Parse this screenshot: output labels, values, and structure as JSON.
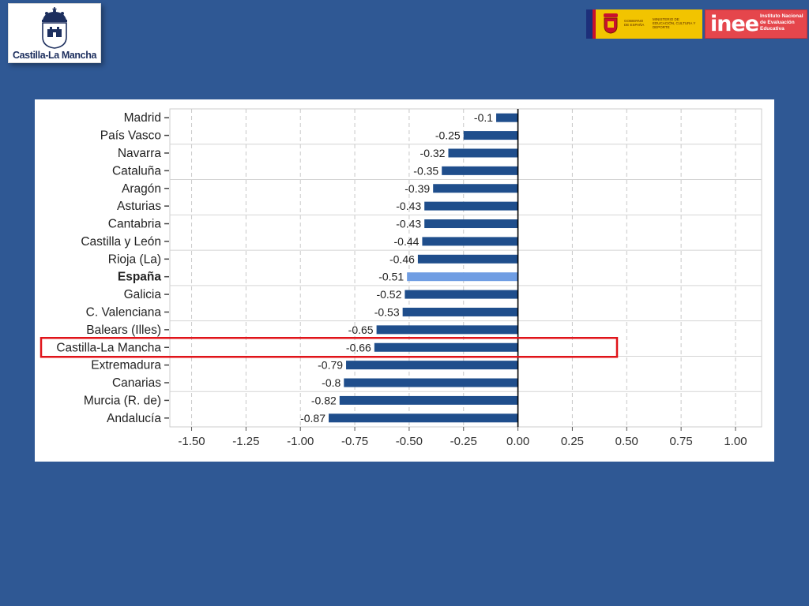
{
  "header": {
    "left_logo": {
      "name": "Castilla-La Mancha",
      "icon": "castle-crown-crest-icon"
    },
    "right_logos": {
      "government": {
        "icon": "spain-coat-of-arms-icon",
        "line1": "GOBIERNO DE ESPAÑA",
        "line2": "MINISTERIO DE EDUCACIÓN, CULTURA Y DEPORTE"
      },
      "inee": {
        "wordmark": "inee",
        "subtitle": "Instituto Nacional de Evaluación Educativa"
      }
    }
  },
  "colors": {
    "background": "#2f5894",
    "bar": "#1f4e8c",
    "bar_highlight": "#6f9de3",
    "highlight_box": "#e0141a"
  },
  "chart_data": {
    "type": "bar",
    "orientation": "horizontal",
    "categories": [
      "Madrid",
      "País Vasco",
      "Navarra",
      "Cataluña",
      "Aragón",
      "Asturias",
      "Cantabria",
      "Castilla y León",
      "Rioja (La)",
      "España",
      "Galicia",
      "C. Valenciana",
      "Balears (Illes)",
      "Castilla-La Mancha",
      "Extremadura",
      "Canarias",
      "Murcia (R. de)",
      "Andalucía"
    ],
    "values": [
      -0.1,
      -0.25,
      -0.32,
      -0.35,
      -0.39,
      -0.43,
      -0.43,
      -0.44,
      -0.46,
      -0.51,
      -0.52,
      -0.53,
      -0.65,
      -0.66,
      -0.79,
      -0.8,
      -0.82,
      -0.87
    ],
    "value_labels": [
      "-0.1",
      "-0.25",
      "-0.32",
      "-0.35",
      "-0.39",
      "-0.43",
      "-0.43",
      "-0.44",
      "-0.46",
      "-0.51",
      "-0.52",
      "-0.53",
      "-0.65",
      "-0.66",
      "-0.79",
      "-0.8",
      "-0.82",
      "-0.87"
    ],
    "highlight_category": "España",
    "boxed_category": "Castilla-La Mancha",
    "xlim": [
      -1.6,
      1.12
    ],
    "xticks": [
      -1.5,
      -1.25,
      -1.0,
      -0.75,
      -0.5,
      -0.25,
      0.0,
      0.25,
      0.5,
      0.75,
      1.0
    ],
    "xtick_labels": [
      "-1.50",
      "-1.25",
      "-1.00",
      "-0.75",
      "-0.50",
      "-0.25",
      "0.00",
      "0.25",
      "0.50",
      "0.75",
      "1.00"
    ],
    "grid": true,
    "title": "",
    "xlabel": "",
    "ylabel": ""
  }
}
